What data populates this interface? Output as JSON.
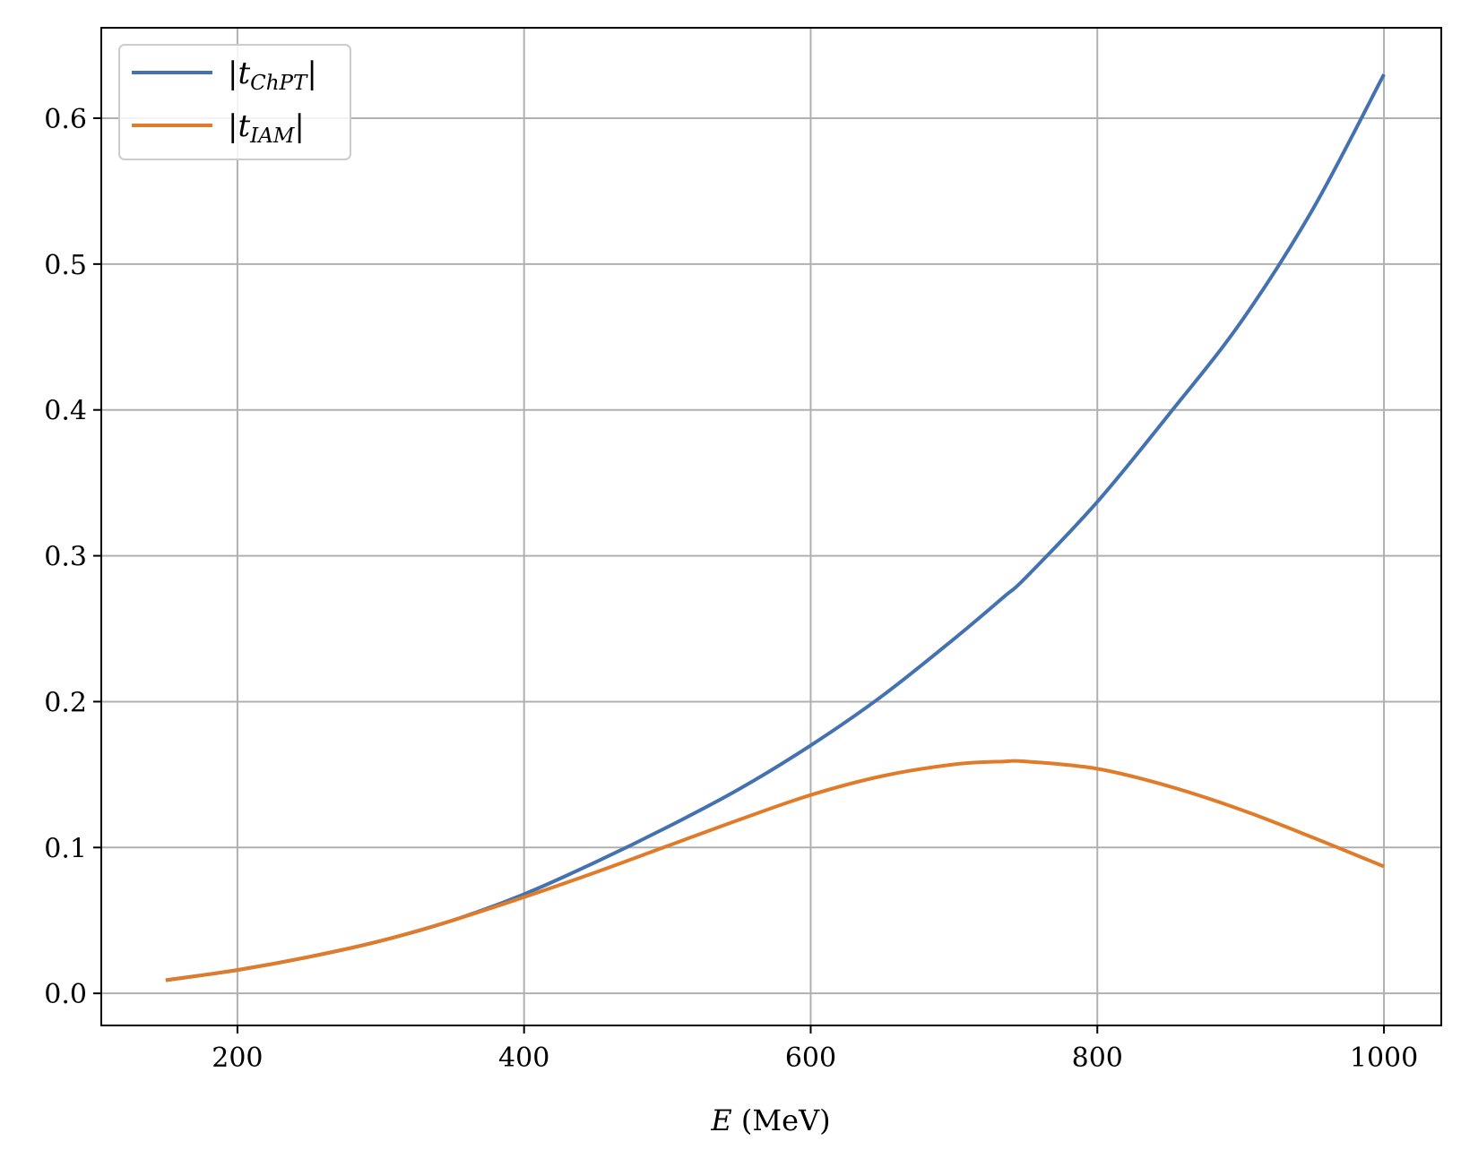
{
  "chart_data": {
    "type": "line",
    "title": "",
    "xlabel": "E (MeV)",
    "xlabel_var": "E",
    "xlabel_unit": "(MeV)",
    "ylabel": "",
    "xlim": [
      105,
      1040
    ],
    "ylim": [
      -0.022,
      0.662
    ],
    "xticks": [
      200,
      400,
      600,
      800,
      1000
    ],
    "yticks": [
      0.0,
      0.1,
      0.2,
      0.3,
      0.4,
      0.5,
      0.6
    ],
    "xtick_labels": [
      "200",
      "400",
      "600",
      "800",
      "1000"
    ],
    "ytick_labels": [
      "0.0",
      "0.1",
      "0.2",
      "0.3",
      "0.4",
      "0.5",
      "0.6"
    ],
    "grid": true,
    "legend_position": "top-left",
    "x": [
      150,
      200,
      250,
      300,
      350,
      400,
      450,
      500,
      550,
      600,
      650,
      700,
      735,
      750,
      800,
      850,
      900,
      950,
      1000
    ],
    "series": [
      {
        "name": "|t_ChPT|",
        "legend_main": "t",
        "legend_sub": "ChPT",
        "color": "#4472b0",
        "values": [
          0.009,
          0.016,
          0.025,
          0.036,
          0.05,
          0.068,
          0.09,
          0.114,
          0.14,
          0.17,
          0.204,
          0.243,
          0.272,
          0.285,
          0.337,
          0.397,
          0.46,
          0.537,
          0.63
        ]
      },
      {
        "name": "|t_IAM|",
        "legend_main": "t",
        "legend_sub": "IAM",
        "color": "#e07b2a",
        "values": [
          0.009,
          0.016,
          0.025,
          0.036,
          0.05,
          0.066,
          0.083,
          0.101,
          0.119,
          0.136,
          0.149,
          0.157,
          0.159,
          0.159,
          0.154,
          0.142,
          0.126,
          0.107,
          0.087
        ]
      }
    ]
  }
}
